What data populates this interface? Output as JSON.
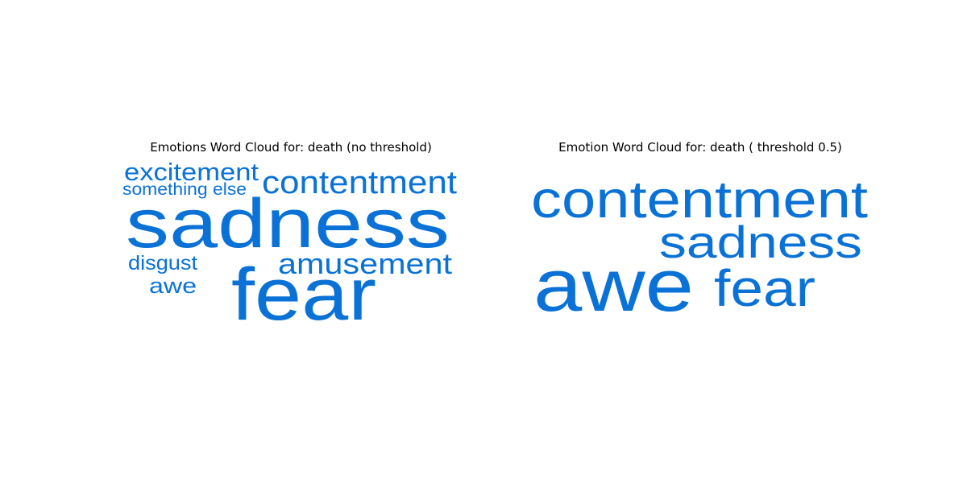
{
  "figure": {
    "background": "#ffffff",
    "word_color": "#0a72d6"
  },
  "chart_data": [
    {
      "type": "wordcloud",
      "title": "Emotions Word Cloud for: death (no threshold)",
      "words": [
        {
          "text": "sadness",
          "weight": 1.0
        },
        {
          "text": "fear",
          "weight": 0.93
        },
        {
          "text": "contentment",
          "weight": 0.43
        },
        {
          "text": "amusement",
          "weight": 0.37
        },
        {
          "text": "excitement",
          "weight": 0.33
        },
        {
          "text": "disgust",
          "weight": 0.27
        },
        {
          "text": "awe",
          "weight": 0.27
        },
        {
          "text": "something else",
          "weight": 0.24
        }
      ]
    },
    {
      "type": "wordcloud",
      "title": "Emotion Word Cloud for: death ( threshold 0.5)",
      "words": [
        {
          "text": "awe",
          "weight": 1.0
        },
        {
          "text": "contentment",
          "weight": 0.7
        },
        {
          "text": "fear",
          "weight": 0.7
        },
        {
          "text": "sadness",
          "weight": 0.58
        }
      ]
    }
  ]
}
